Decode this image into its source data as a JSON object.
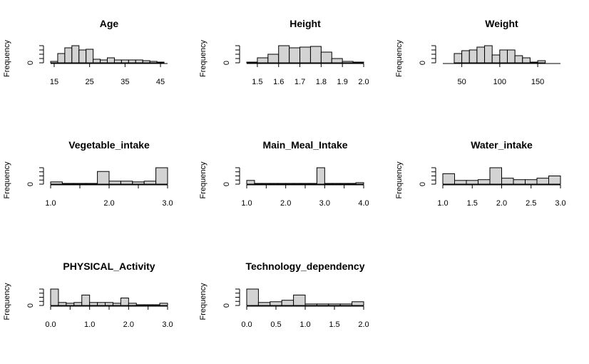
{
  "chart_data": [
    {
      "type": "bar",
      "title": "Age",
      "ylabel": "Frequency",
      "y_tick_labels": [
        "0"
      ],
      "bin_edges": [
        14,
        16,
        18,
        20,
        22,
        24,
        26,
        28,
        30,
        32,
        34,
        36,
        38,
        40,
        42,
        44,
        46
      ],
      "counts": [
        2,
        13,
        21,
        24,
        18,
        19,
        5,
        4,
        7,
        4,
        4,
        4,
        4,
        3,
        2,
        1
      ],
      "xlim": [
        14,
        47
      ],
      "x_ticks": [
        15,
        25,
        35,
        45
      ],
      "x_tick_labels": [
        "15",
        "25",
        "35",
        "45"
      ],
      "ylim": [
        0,
        24
      ]
    },
    {
      "type": "bar",
      "title": "Height",
      "ylabel": "Frequency",
      "y_tick_labels": [
        "0"
      ],
      "bin_edges": [
        1.45,
        1.5,
        1.55,
        1.6,
        1.65,
        1.7,
        1.75,
        1.8,
        1.85,
        1.9,
        1.95,
        2.0
      ],
      "counts": [
        1,
        7,
        12,
        24,
        21,
        22,
        23,
        15,
        6,
        2,
        1
      ],
      "xlim": [
        1.45,
        2.0
      ],
      "x_ticks": [
        1.5,
        1.6,
        1.7,
        1.8,
        1.9,
        2.0
      ],
      "x_tick_labels": [
        "1.5",
        "1.6",
        "1.7",
        "1.8",
        "1.9",
        "2.0"
      ],
      "ylim": [
        0,
        24
      ]
    },
    {
      "type": "bar",
      "title": "Weight",
      "ylabel": "Frequency",
      "y_tick_labels": [
        "0"
      ],
      "bin_edges": [
        40,
        50,
        60,
        70,
        80,
        90,
        100,
        110,
        120,
        130,
        140,
        150,
        160
      ],
      "counts": [
        13,
        17,
        18,
        22,
        24,
        11,
        18,
        18,
        10,
        7,
        1,
        3
      ],
      "xlim": [
        25,
        180
      ],
      "x_ticks": [
        50,
        100,
        150
      ],
      "x_tick_labels": [
        "50",
        "100",
        "150"
      ],
      "ylim": [
        0,
        24
      ]
    },
    {
      "type": "bar",
      "title": "Vegetable_intake",
      "ylabel": "Frequency",
      "y_tick_labels": [
        "0"
      ],
      "bin_edges": [
        1.0,
        1.2,
        1.4,
        1.6,
        1.8,
        2.0,
        2.2,
        2.4,
        2.6,
        2.8,
        3.0
      ],
      "counts": [
        3,
        1,
        1,
        1,
        17,
        4,
        4,
        3,
        4,
        22
      ],
      "xlim": [
        1.0,
        3.0
      ],
      "x_ticks": [
        1.0,
        1.5,
        2.0,
        2.5,
        3.0
      ],
      "x_tick_labels": [
        "1.0",
        "2.0",
        "3.0"
      ],
      "x_tick_labels_shown_at": [
        1.0,
        2.0,
        3.0
      ],
      "ylim": [
        0,
        22
      ]
    },
    {
      "type": "bar",
      "title": "Main_Meal_Intake",
      "ylabel": "Frequency",
      "y_tick_labels": [
        "0"
      ],
      "bin_edges": [
        1.0,
        1.2,
        1.4,
        1.6,
        1.8,
        2.0,
        2.2,
        2.4,
        2.6,
        2.8,
        3.0,
        3.2,
        3.4,
        3.6,
        3.8,
        4.0
      ],
      "counts": [
        5,
        1,
        1,
        1,
        1,
        1,
        1,
        1,
        1,
        22,
        1,
        1,
        1,
        1,
        2
      ],
      "xlim": [
        1.0,
        4.0
      ],
      "x_ticks": [
        1.0,
        1.5,
        2.0,
        2.5,
        3.0,
        3.5,
        4.0
      ],
      "x_tick_labels": [
        "1.0",
        "2.0",
        "3.0",
        "4.0"
      ],
      "x_tick_labels_shown_at": [
        1.0,
        2.0,
        3.0,
        4.0
      ],
      "ylim": [
        0,
        22
      ]
    },
    {
      "type": "bar",
      "title": "Water_intake",
      "ylabel": "Frequency",
      "y_tick_labels": [
        "0"
      ],
      "bin_edges": [
        1.0,
        1.2,
        1.4,
        1.6,
        1.8,
        2.0,
        2.2,
        2.4,
        2.6,
        2.8,
        3.0
      ],
      "counts": [
        14,
        5,
        5,
        6,
        22,
        8,
        6,
        6,
        8,
        11
      ],
      "xlim": [
        1.0,
        3.0
      ],
      "x_ticks": [
        1.0,
        1.5,
        2.0,
        2.5,
        3.0
      ],
      "x_tick_labels": [
        "1.0",
        "1.5",
        "2.0",
        "2.5",
        "3.0"
      ],
      "ylim": [
        0,
        22
      ]
    },
    {
      "type": "bar",
      "title": "PHYSICAL_Activity",
      "ylabel": "Frequency",
      "y_tick_labels": [
        "0"
      ],
      "bin_edges": [
        0.0,
        0.2,
        0.4,
        0.6,
        0.8,
        1.0,
        1.2,
        1.4,
        1.6,
        1.8,
        2.0,
        2.2,
        2.4,
        2.6,
        2.8,
        3.0
      ],
      "counts": [
        22,
        4,
        3,
        4,
        14,
        4,
        4,
        4,
        3,
        10,
        3,
        1,
        1,
        1,
        3
      ],
      "xlim": [
        0.0,
        3.0
      ],
      "x_ticks": [
        0.0,
        0.5,
        1.0,
        1.5,
        2.0,
        2.5,
        3.0
      ],
      "x_tick_labels": [
        "0.0",
        "1.0",
        "2.0",
        "3.0"
      ],
      "x_tick_labels_shown_at": [
        0.0,
        1.0,
        2.0,
        3.0
      ],
      "ylim": [
        0,
        22
      ]
    },
    {
      "type": "bar",
      "title": "Technology_dependency",
      "ylabel": "Frequency",
      "y_tick_labels": [
        "0"
      ],
      "bin_edges": [
        0.0,
        0.2,
        0.4,
        0.6,
        0.8,
        1.0,
        1.2,
        1.4,
        1.6,
        1.8,
        2.0
      ],
      "counts": [
        22,
        4,
        5,
        7,
        14,
        2,
        2,
        2,
        2,
        5
      ],
      "xlim": [
        0.0,
        2.0
      ],
      "x_ticks": [
        0.0,
        0.5,
        1.0,
        1.5,
        2.0
      ],
      "x_tick_labels": [
        "0.0",
        "0.5",
        "1.0",
        "1.5",
        "2.0"
      ],
      "ylim": [
        0,
        22
      ]
    }
  ]
}
